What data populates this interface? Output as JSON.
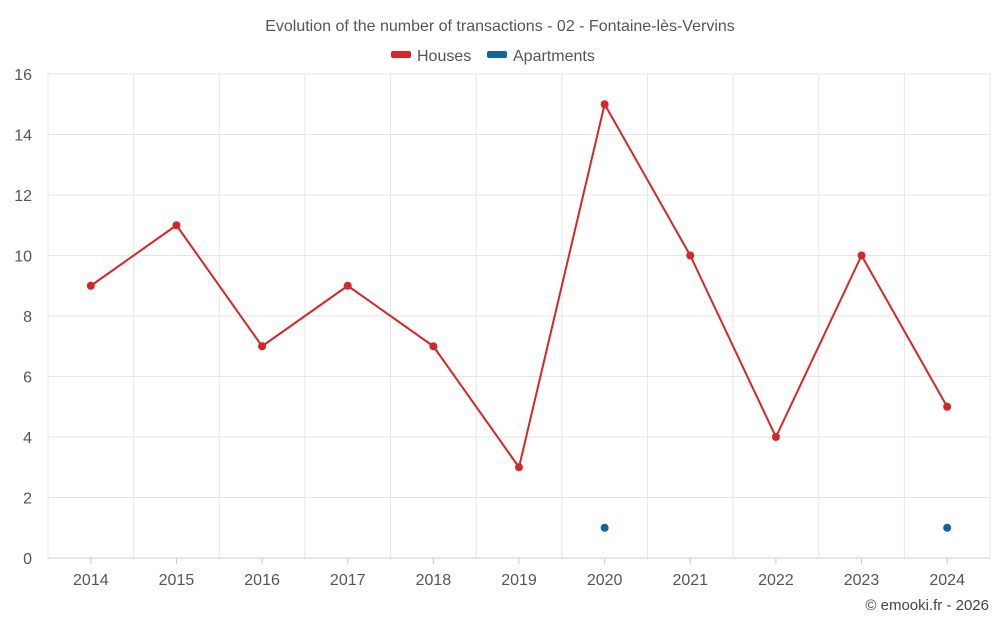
{
  "chart_data": {
    "type": "line",
    "title": "Evolution of the number of transactions - 02 - Fontaine-lès-Vervins",
    "categories": [
      "2014",
      "2015",
      "2016",
      "2017",
      "2018",
      "2019",
      "2020",
      "2021",
      "2022",
      "2023",
      "2024"
    ],
    "series": [
      {
        "name": "Houses",
        "color": "#d62728",
        "values": [
          9,
          11,
          7,
          9,
          7,
          3,
          15,
          10,
          4,
          10,
          5
        ],
        "style": "line+markers"
      },
      {
        "name": "Apartments",
        "color": "#0e6699",
        "values": [
          null,
          null,
          null,
          null,
          null,
          null,
          1,
          null,
          null,
          null,
          1
        ],
        "style": "markers"
      }
    ],
    "ylim": [
      0,
      16
    ],
    "yticks": [
      0,
      2,
      4,
      6,
      8,
      10,
      12,
      14,
      16
    ],
    "grid": true,
    "legend_position": "top-center",
    "xlabel": "",
    "ylabel": ""
  },
  "credit": "© emooki.fr - 2026"
}
